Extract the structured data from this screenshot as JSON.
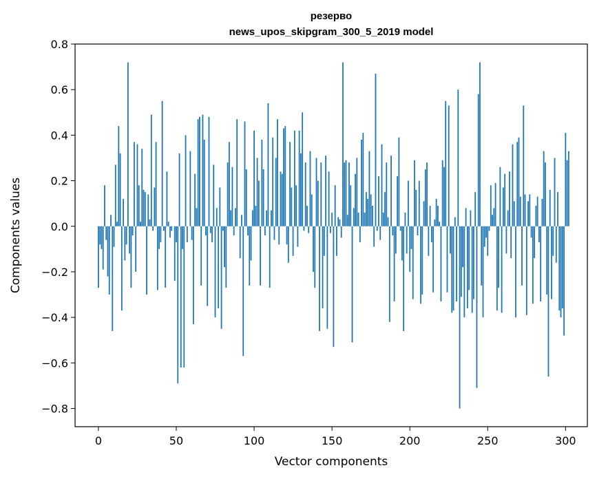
{
  "chart_data": {
    "type": "bar",
    "title_line1": "резерво",
    "title_line2": "news_upos_skipgram_300_5_2019 model",
    "xlabel": "Vector components",
    "ylabel": "Components values",
    "xlim": [
      -15,
      314
    ],
    "ylim": [
      -0.88,
      0.8
    ],
    "xticks": [
      0,
      50,
      100,
      150,
      200,
      250,
      300
    ],
    "xtick_labels": [
      "0",
      "50",
      "100",
      "150",
      "200",
      "250",
      "300"
    ],
    "yticks": [
      0.8,
      0.6,
      0.4,
      0.2,
      0.0,
      -0.2,
      -0.4,
      -0.6,
      -0.8
    ],
    "ytick_labels": [
      "0.8",
      "0.6",
      "0.4",
      "0.2",
      "0.0",
      "−0.2",
      "−0.4",
      "−0.6",
      "−0.8"
    ],
    "bar_color": "#1f77b4",
    "values": [
      -0.27,
      -0.08,
      -0.1,
      -0.19,
      0.18,
      -0.06,
      -0.22,
      -0.3,
      0.05,
      -0.46,
      -0.09,
      0.27,
      0.02,
      0.44,
      0.32,
      -0.37,
      0.12,
      -0.15,
      -0.08,
      0.72,
      -0.12,
      -0.27,
      -0.04,
      0.37,
      -0.2,
      0.36,
      0.18,
      0.02,
      0.34,
      0.16,
      0.15,
      -0.3,
      0.14,
      0.03,
      0.49,
      -0.02,
      0.17,
      0.37,
      -0.28,
      -0.1,
      -0.07,
      0.55,
      -0.02,
      -0.27,
      0.24,
      0.02,
      -0.05,
      -0.02,
      0.0,
      -0.24,
      -0.07,
      -0.69,
      0.32,
      -0.62,
      -0.1,
      -0.62,
      0.4,
      -0.07,
      0.0,
      0.33,
      -0.06,
      -0.43,
      0.23,
      0.08,
      0.47,
      0.48,
      -0.26,
      0.49,
      0.38,
      -0.04,
      -0.35,
      0.48,
      -0.03,
      -0.07,
      0.27,
      -0.4,
      0.08,
      -0.36,
      0.17,
      -0.45,
      -0.02,
      -0.18,
      -0.27,
      0.28,
      0.37,
      0.07,
      0.26,
      -0.04,
      0.08,
      0.47,
      0.0,
      -0.14,
      0.05,
      -0.57,
      0.46,
      0.25,
      -0.04,
      -0.26,
      -0.15,
      0.07,
      0.42,
      0.09,
      0.3,
      0.2,
      -0.26,
      0.38,
      0.25,
      -0.04,
      0.07,
      0.54,
      -0.27,
      0.07,
      0.39,
      -0.06,
      0.3,
      0.47,
      -0.08,
      0.24,
      0.23,
      0.43,
      0.44,
      -0.08,
      -0.16,
      0.37,
      0.17,
      -0.13,
      0.42,
      0.18,
      -0.09,
      0.42,
      0.32,
      0.5,
      -0.02,
      0.28,
      0.09,
      -0.03,
      0.33,
      0.14,
      -0.2,
      -0.27,
      0.3,
      0.2,
      -0.46,
      0.28,
      -0.36,
      -0.13,
      0.31,
      -0.45,
      0.24,
      -0.03,
      0.06,
      -0.53,
      0.18,
      -0.13,
      0.04,
      0.03,
      -0.05,
      0.72,
      0.28,
      0.29,
      0.05,
      0.28,
      0.18,
      -0.51,
      0.08,
      0.23,
      0.3,
      0.06,
      -0.07,
      0.38,
      0.41,
      0.06,
      0.15,
      0.12,
      0.33,
      0.14,
      0.09,
      -0.09,
      0.67,
      -0.02,
      0.22,
      -0.06,
      0.36,
      0.06,
      0.15,
      0.28,
      0.04,
      -0.42,
      0.31,
      -0.04,
      -0.33,
      -0.12,
      0.22,
      0.39,
      -0.02,
      -0.15,
      -0.46,
      0.06,
      -0.12,
      0.2,
      -0.2,
      -0.1,
      -0.32,
      0.29,
      0.16,
      -0.04,
      0.2,
      -0.34,
      -0.3,
      0.11,
      0.25,
      0.28,
      -0.13,
      0.09,
      -0.07,
      -0.29,
      0.03,
      0.12,
      0.09,
      0.02,
      -0.33,
      0.29,
      0.26,
      0.55,
      -0.29,
      0.53,
      -0.12,
      -0.38,
      -0.37,
      0.04,
      -0.33,
      0.6,
      -0.8,
      -0.31,
      -0.18,
      -0.4,
      0.08,
      -0.36,
      -0.28,
      0.07,
      -0.38,
      -0.32,
      0.15,
      -0.71,
      0.58,
      0.72,
      -0.26,
      -0.4,
      -0.09,
      -0.05,
      -0.13,
      -0.02,
      0.18,
      0.05,
      0.08,
      0.19,
      -0.37,
      -0.27,
      0.26,
      -0.38,
      0.17,
      0.23,
      -0.12,
      0.07,
      0.24,
      -0.14,
      0.36,
      0.11,
      -0.4,
      0.37,
      0.39,
      0.13,
      -0.26,
      0.53,
      0.14,
      -0.39,
      0.11,
      0.14,
      -0.05,
      -0.34,
      -0.14,
      0.09,
      0.13,
      -0.07,
      -0.33,
      0.12,
      0.33,
      0.28,
      -0.3,
      -0.66,
      0.16,
      -0.32,
      -0.13,
      0.3,
      -0.16,
      0.15,
      -0.37,
      -0.4,
      -0.36,
      -0.48,
      0.41,
      0.29,
      0.33
    ]
  }
}
